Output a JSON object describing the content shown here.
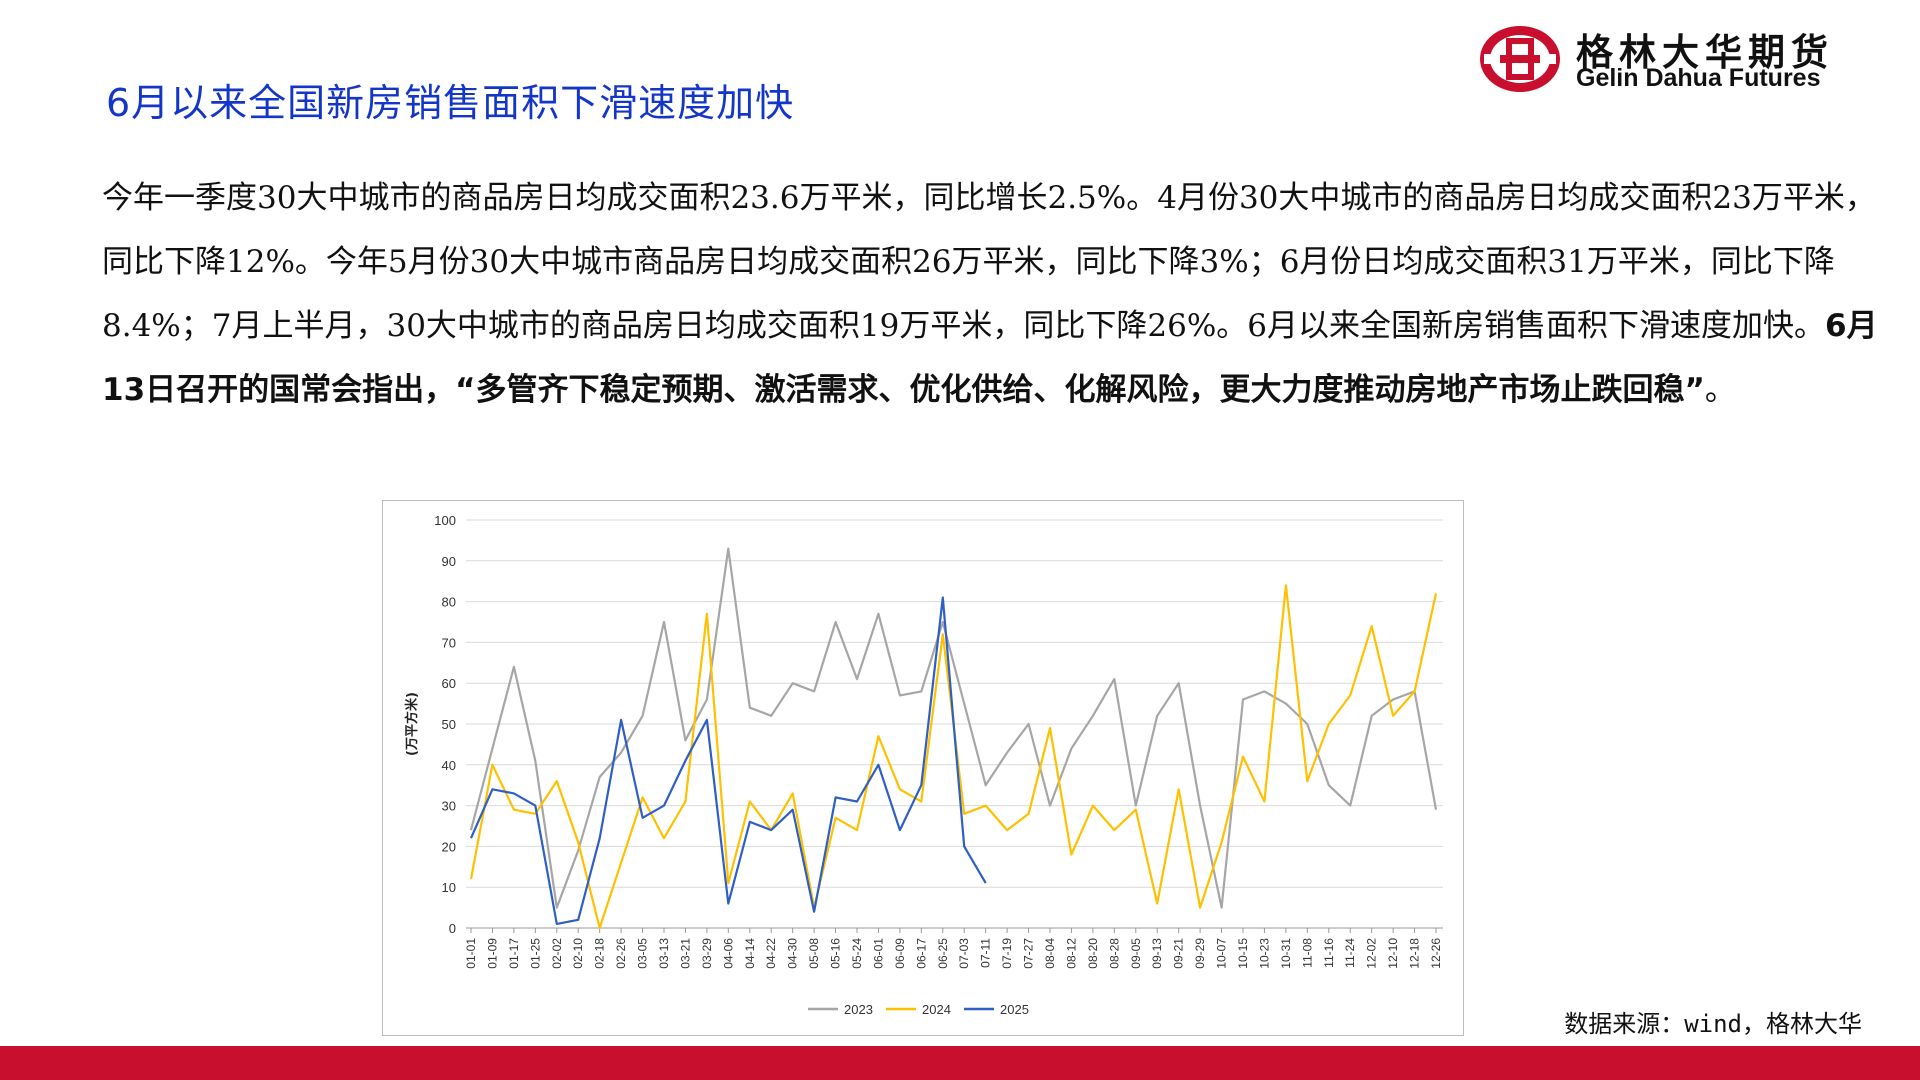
{
  "header": {
    "title": "6月以来全国新房销售面积下滑速度加快",
    "logo_cn": "格林大华期货",
    "logo_en": "Gelin Dahua Futures"
  },
  "body": {
    "p1": "今年一季度30大中城市的商品房日均成交面积23.6万平米，同比增长2.5%。4月份30大中城市的商品房日均成交面积23万平米，同比下降12%。今年5月份30大中城市商品房日均成交面积26万平米，同比下降3%；6月份日均成交面积31万平米，同比下降8.4%；7月上半月，30大中城市的商品房日均成交面积19万平米，同比下降26%。6月以来全国新房销售面积下滑速度加快。",
    "p2_bold": "6月13日召开的国常会指出，“多管齐下稳定预期、激活需求、优化供给、化解风险，更大力度推动房地产市场止跌回稳”",
    "p3": "。"
  },
  "source": "数据来源：wind，格林大华",
  "colors": {
    "title": "#1436c8",
    "brand_red": "#c8102e"
  },
  "chart_data": {
    "type": "line",
    "title": "",
    "ylabel": "(万平方米)",
    "xlabel": "",
    "ylim": [
      0,
      100
    ],
    "yticks": [
      0,
      10,
      20,
      30,
      40,
      50,
      60,
      70,
      80,
      90,
      100
    ],
    "grid": "horizontal",
    "legend": "bottom-center",
    "x_tick_labels": [
      "01-01",
      "01-09",
      "01-17",
      "01-25",
      "02-02",
      "02-10",
      "02-18",
      "02-26",
      "03-05",
      "03-13",
      "03-21",
      "03-29",
      "04-06",
      "04-14",
      "04-22",
      "04-30",
      "05-08",
      "05-16",
      "05-24",
      "06-01",
      "06-09",
      "06-17",
      "06-25",
      "07-03",
      "07-11",
      "07-19",
      "07-27",
      "08-04",
      "08-12",
      "08-20",
      "08-28",
      "09-05",
      "09-13",
      "09-21",
      "09-29",
      "10-07",
      "10-15",
      "10-23",
      "10-31",
      "11-08",
      "11-16",
      "11-24",
      "12-02",
      "12-10",
      "12-18",
      "12-26"
    ],
    "series": [
      {
        "name": "2023",
        "color": "#a6a6a6",
        "x": [
          "01-01",
          "01-09",
          "01-17",
          "01-25",
          "02-02",
          "02-10",
          "02-18",
          "02-26",
          "03-05",
          "03-13",
          "03-21",
          "03-29",
          "04-06",
          "04-14",
          "04-22",
          "04-30",
          "05-08",
          "05-16",
          "05-24",
          "06-01",
          "06-09",
          "06-17",
          "06-25",
          "07-03",
          "07-11",
          "07-19",
          "07-27",
          "08-04",
          "08-12",
          "08-20",
          "08-28",
          "09-05",
          "09-13",
          "09-21",
          "09-29",
          "10-07",
          "10-15",
          "10-23",
          "10-31",
          "11-08",
          "11-16",
          "11-24",
          "12-02",
          "12-10",
          "12-18",
          "12-26"
        ],
        "values": [
          24,
          44,
          64,
          41,
          5,
          19,
          37,
          43,
          52,
          75,
          46,
          56,
          93,
          54,
          52,
          60,
          58,
          75,
          61,
          77,
          57,
          58,
          75,
          55,
          35,
          43,
          50,
          30,
          44,
          52,
          61,
          30,
          52,
          60,
          30,
          5,
          56,
          58,
          55,
          50,
          35,
          30,
          52,
          56,
          58,
          29
        ]
      },
      {
        "name": "2024",
        "color": "#ffc000",
        "x": [
          "01-01",
          "01-09",
          "01-17",
          "01-25",
          "02-02",
          "02-10",
          "02-18",
          "02-26",
          "03-05",
          "03-13",
          "03-21",
          "03-29",
          "04-06",
          "04-14",
          "04-22",
          "04-30",
          "05-08",
          "05-16",
          "05-24",
          "06-01",
          "06-09",
          "06-17",
          "06-25",
          "07-03",
          "07-11",
          "07-19",
          "07-27",
          "08-04",
          "08-12",
          "08-20",
          "08-28",
          "09-05",
          "09-13",
          "09-21",
          "09-29",
          "10-07",
          "10-15",
          "10-23",
          "10-31",
          "11-08",
          "11-16",
          "11-24",
          "12-02",
          "12-10",
          "12-18",
          "12-26"
        ],
        "values": [
          12,
          40,
          29,
          28,
          36,
          21,
          0,
          16,
          32,
          22,
          31,
          77,
          11,
          31,
          24,
          33,
          5,
          27,
          24,
          47,
          34,
          31,
          72,
          28,
          30,
          24,
          28,
          49,
          18,
          30,
          24,
          29,
          6,
          34,
          5,
          21,
          42,
          31,
          84,
          36,
          50,
          57,
          74,
          52,
          58,
          82
        ]
      },
      {
        "name": "2025",
        "color": "#2e5fc4",
        "x": [
          "01-01",
          "01-09",
          "01-17",
          "01-25",
          "02-02",
          "02-10",
          "02-18",
          "02-26",
          "03-05",
          "03-13",
          "03-21",
          "03-29",
          "04-06",
          "04-14",
          "04-22",
          "04-30",
          "05-08",
          "05-16",
          "05-24",
          "06-01",
          "06-09",
          "06-17",
          "06-25",
          "07-03",
          "07-11"
        ],
        "values": [
          22,
          34,
          33,
          30,
          1,
          2,
          22,
          51,
          27,
          30,
          41,
          51,
          6,
          26,
          24,
          29,
          4,
          32,
          31,
          40,
          24,
          35,
          81,
          20,
          11
        ]
      }
    ]
  }
}
